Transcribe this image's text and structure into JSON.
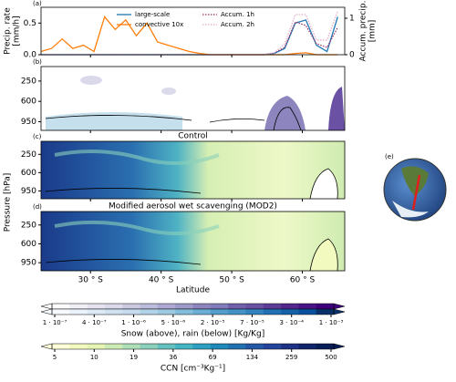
{
  "chart_data": [
    {
      "type": "line",
      "panel_label": "(a)",
      "ylabel": [
        "Precip. rate",
        "[mm/h]"
      ],
      "y2label": [
        "Accum. precip.",
        "[mm]"
      ],
      "x": [
        23,
        24.5,
        26,
        27.5,
        29,
        30.5,
        32,
        33.5,
        35,
        36.5,
        38,
        39.5,
        41,
        42.5,
        44,
        45.5,
        47,
        48.5,
        50,
        51.5,
        53,
        54.5,
        56,
        57.5,
        59,
        60.5,
        62,
        63.5,
        65
      ],
      "ylim": [
        0,
        0.75
      ],
      "yticks": [
        {
          "value": 0,
          "label": "0.0"
        },
        {
          "value": 0.5,
          "label": "0.5"
        }
      ],
      "y2lim": [
        0,
        1.3
      ],
      "y2ticks": [
        0,
        1
      ],
      "series": [
        {
          "name": "large-scale",
          "color": "#1f77b4",
          "style": "solid",
          "values": [
            0,
            0,
            0,
            0,
            0,
            0,
            0,
            0,
            0,
            0,
            0,
            0,
            0,
            0,
            0,
            0,
            0,
            0,
            0,
            0,
            0,
            0,
            0.02,
            0.1,
            0.5,
            0.55,
            0.15,
            0.05,
            0.6
          ]
        },
        {
          "name": "convective 10x",
          "color": "#ff7f0e",
          "style": "solid",
          "values": [
            0.05,
            0.1,
            0.25,
            0.1,
            0.15,
            0.05,
            0.6,
            0.4,
            0.55,
            0.3,
            0.5,
            0.2,
            0.15,
            0.1,
            0.05,
            0.02,
            0,
            0,
            0,
            0,
            0,
            0,
            0,
            0,
            0.02,
            0.03,
            0,
            0,
            0
          ]
        },
        {
          "name": "Accum. 1h",
          "color": "#9c2f63",
          "style": "dotted",
          "axis": "y2",
          "values": [
            0,
            0,
            0,
            0,
            0,
            0,
            0,
            0,
            0,
            0,
            0,
            0,
            0,
            0,
            0,
            0,
            0,
            0,
            0,
            0,
            0,
            0,
            0.05,
            0.2,
            0.9,
            0.8,
            0.3,
            0.2,
            0.75
          ]
        },
        {
          "name": "Accum. 2h",
          "color": "#e3aac4",
          "style": "dotted",
          "axis": "y2",
          "values": [
            0,
            0,
            0,
            0,
            0,
            0,
            0,
            0,
            0,
            0,
            0,
            0,
            0,
            0,
            0,
            0,
            0,
            0,
            0,
            0,
            0,
            0,
            0.05,
            0.3,
            1.1,
            1.1,
            0.4,
            0.4,
            1.2
          ]
        }
      ]
    },
    {
      "type": "field",
      "panel_label": "(b)",
      "ylim": [
        1100,
        0
      ],
      "yticks": [
        250,
        600,
        950
      ]
    },
    {
      "type": "field",
      "panel_label": "(c)",
      "title": "Control",
      "ylabel": "Pressure [hPa]",
      "ylim": [
        1100,
        0
      ],
      "yticks": [
        250,
        600,
        950
      ]
    },
    {
      "type": "field",
      "panel_label": "(d)",
      "title": "Modified aerosol wet scavenging (MOD2)",
      "xlabel": "Latitude",
      "ylim": [
        1100,
        0
      ],
      "yticks": [
        250,
        600,
        950
      ],
      "xlim": [
        23,
        66
      ],
      "xticks": [
        {
          "value": 30,
          "label": "30 ° S"
        },
        {
          "value": 40,
          "label": "40 ° S"
        },
        {
          "value": 50,
          "label": "50 ° S"
        },
        {
          "value": 60,
          "label": "60 ° S"
        }
      ]
    },
    {
      "type": "colorbar",
      "label": "Snow (above), rain (below) [Kg/Kg]",
      "ticks": [
        {
          "value": 1e-07,
          "label": "1 · 10⁻⁷"
        },
        {
          "value": 4e-07,
          "label": "4 · 10⁻⁷"
        },
        {
          "value": 1e-06,
          "label": "1 · 10⁻⁶"
        },
        {
          "value": 5e-06,
          "label": "5 · 10⁻⁶"
        },
        {
          "value": 2e-05,
          "label": "2 · 10⁻⁵"
        },
        {
          "value": 7e-05,
          "label": "7 · 10⁻⁵"
        },
        {
          "value": 0.0003,
          "label": "3 · 10⁻⁴"
        },
        {
          "value": 0.001,
          "label": "1 · 10⁻³"
        }
      ],
      "rows": [
        {
          "colors": [
            "#fcfbfd",
            "#f2f0f7",
            "#e6e4f0",
            "#dadaeb",
            "#cbc9e2",
            "#bcbddc",
            "#aea8d2",
            "#9e9ac8",
            "#8d85be",
            "#807dba",
            "#705fab",
            "#6a51a3",
            "#5d3d97",
            "#54278f",
            "#4a1486",
            "#3f007d"
          ]
        },
        {
          "colors": [
            "#f7fbff",
            "#eaf2fb",
            "#deebf7",
            "#d0e2f2",
            "#c6dbef",
            "#b2d2e8",
            "#9ecae1",
            "#84bcdb",
            "#6baed6",
            "#539ecd",
            "#4292c6",
            "#3282be",
            "#2171b5",
            "#1461a8",
            "#08519c",
            "#08306b"
          ]
        }
      ]
    },
    {
      "type": "colorbar",
      "label": "CCN [cm⁻³Kg⁻¹]",
      "ticks": [
        5,
        10,
        19,
        36,
        69,
        134,
        259,
        500
      ],
      "rows": [
        {
          "colors": [
            "#ffffd9",
            "#f3fabf",
            "#e6f5b2",
            "#cdebb4",
            "#afdfb7",
            "#8ad0bb",
            "#63c1bf",
            "#43b4c2",
            "#2ea1c2",
            "#1f89b9",
            "#2170b0",
            "#2357a4",
            "#24439a",
            "#1d3185",
            "#11246b",
            "#081d58"
          ]
        }
      ]
    },
    {
      "type": "image",
      "panel_label": "(e)"
    }
  ]
}
